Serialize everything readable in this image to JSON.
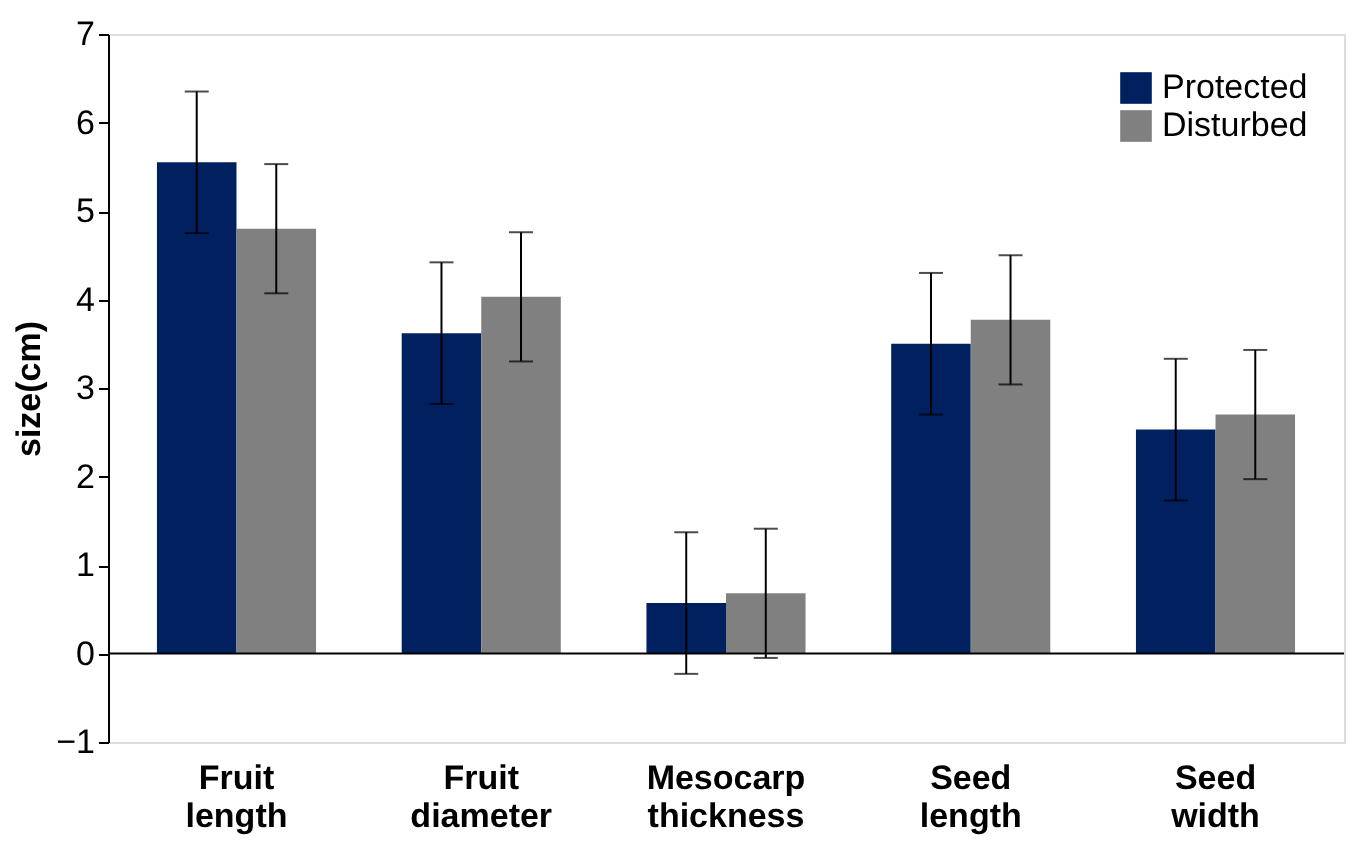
{
  "chart_data": {
    "type": "bar",
    "ylabel": "size(cm)",
    "categories": [
      "Fruit length",
      "Fruit diameter",
      "Mesocarp thickness",
      "Seed length",
      "Seed width"
    ],
    "series": [
      {
        "name": "Protected",
        "color": "#002060",
        "values": [
          5.55,
          3.62,
          0.57,
          3.5,
          2.53
        ],
        "errors": [
          0.8,
          0.8,
          0.8,
          0.8,
          0.8
        ]
      },
      {
        "name": "Disturbed",
        "color": "#808080",
        "values": [
          4.8,
          4.03,
          0.68,
          3.77,
          2.7
        ],
        "errors": [
          0.73,
          0.73,
          0.73,
          0.73,
          0.73
        ]
      }
    ],
    "ylim": [
      -1,
      7
    ],
    "yticks": [
      -1,
      0,
      1,
      2,
      3,
      4,
      5,
      6,
      7
    ],
    "grid": false,
    "legend": "top right",
    "ref_lines": [
      {
        "axis": "y",
        "value": 0,
        "color": "#000000"
      }
    ]
  }
}
